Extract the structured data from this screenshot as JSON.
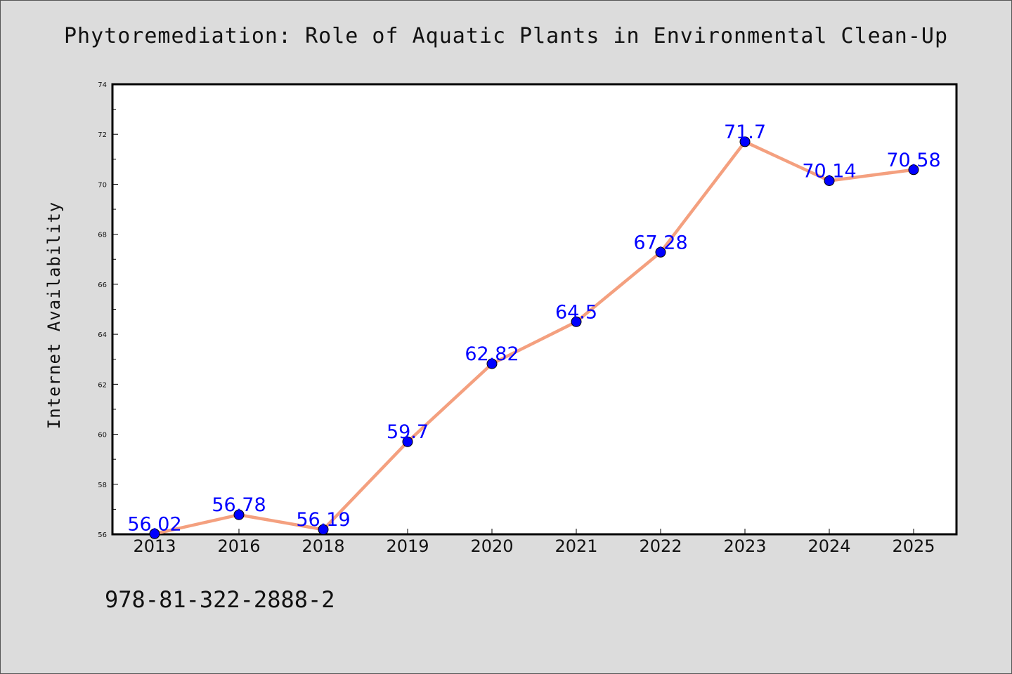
{
  "chart_data": {
    "type": "line",
    "title": "Phytoremediation: Role of Aquatic Plants in Environmental Clean-Up",
    "xlabel": "",
    "ylabel": "Internet Availability",
    "categories": [
      "2013",
      "2016",
      "2018",
      "2019",
      "2020",
      "2021",
      "2022",
      "2023",
      "2024",
      "2025"
    ],
    "series": [
      {
        "values": [
          56.02,
          56.78,
          56.19,
          59.7,
          62.82,
          64.5,
          67.28,
          71.7,
          70.14,
          70.58
        ],
        "labels": [
          "56.02",
          "56.78",
          "56.19",
          "59.7",
          "62.82",
          "64.5",
          "67.28",
          "71.7",
          "70.14",
          "70.58"
        ],
        "line_color": "#f4a07f",
        "marker_color": "#0000ff"
      }
    ],
    "ylim": [
      56,
      74
    ],
    "yticks": [
      "56",
      "58",
      "60",
      "62",
      "64",
      "66",
      "68",
      "70",
      "72",
      "74"
    ],
    "grid": false,
    "legend": "none"
  },
  "footer": {
    "code": "978-81-322-2888-2"
  }
}
